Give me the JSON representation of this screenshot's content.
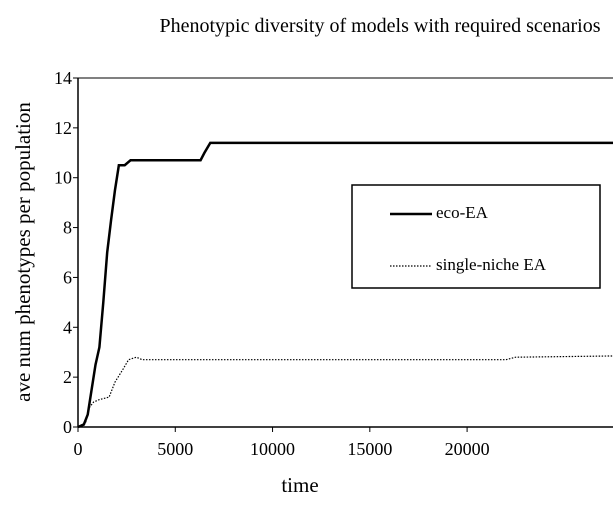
{
  "chart_data": {
    "type": "line",
    "title": "Phenotypic diversity of models with required scenarios",
    "xlabel": "time",
    "ylabel": "ave num phenotypes per population",
    "xlim": [
      0,
      27500
    ],
    "xticks": [
      0,
      5000,
      10000,
      15000,
      20000
    ],
    "ylim": [
      0,
      14
    ],
    "yticks": [
      0,
      2,
      4,
      6,
      8,
      10,
      12,
      14
    ],
    "series": [
      {
        "name": "eco-EA",
        "color": "#000000",
        "style": "solid",
        "x": [
          0,
          300,
          500,
          700,
          900,
          1100,
          1300,
          1500,
          1700,
          1900,
          2100,
          2400,
          2700,
          3000,
          6300,
          6500,
          6800,
          27500
        ],
        "values": [
          0,
          0.1,
          0.5,
          1.5,
          2.5,
          3.2,
          5,
          7,
          8.3,
          9.5,
          10.5,
          10.5,
          10.7,
          10.7,
          10.7,
          11,
          11.4,
          11.4
        ]
      },
      {
        "name": "single-niche EA",
        "color": "#000000",
        "style": "dotted",
        "x": [
          0,
          400,
          600,
          800,
          1100,
          1600,
          1900,
          2300,
          2600,
          3000,
          3300,
          22000,
          22500,
          27500
        ],
        "values": [
          0,
          0.2,
          0.8,
          1,
          1.1,
          1.2,
          1.8,
          2.3,
          2.7,
          2.8,
          2.7,
          2.7,
          2.8,
          2.85
        ]
      }
    ]
  }
}
